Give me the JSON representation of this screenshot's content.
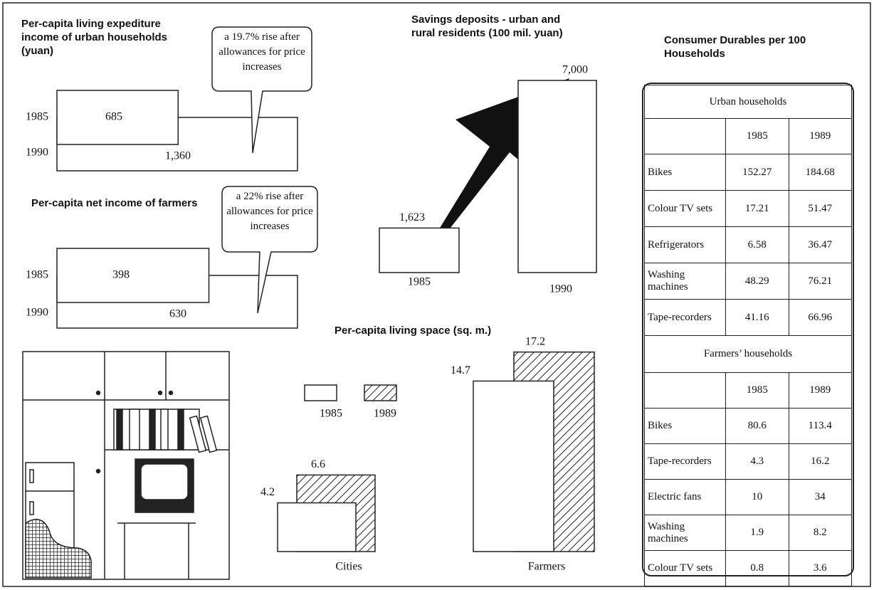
{
  "chart_data": [
    {
      "type": "bar",
      "orientation": "horizontal",
      "title": "Per-capita living expediture income of urban households (yuan)",
      "categories": [
        "1985",
        "1990"
      ],
      "values": [
        685,
        1360
      ],
      "value_labels": [
        "685",
        "1,360"
      ],
      "annotation": "a 19.7% rise after allowances for price increases",
      "color": "#ffffff"
    },
    {
      "type": "bar",
      "orientation": "horizontal",
      "title": "Per-capita net income of farmers",
      "categories": [
        "1985",
        "1990"
      ],
      "values": [
        398,
        630
      ],
      "value_labels": [
        "398",
        "630"
      ],
      "annotation": "a 22% rise after allowances for price increases",
      "color": "#ffffff"
    },
    {
      "type": "bar",
      "orientation": "vertical",
      "title": "Savings deposits - urban and rural residents (100 mil. yuan)",
      "categories": [
        "1985",
        "1990"
      ],
      "values": [
        1623,
        7000
      ],
      "value_labels": [
        "1,623",
        "7,000"
      ],
      "color": "#ffffff"
    },
    {
      "type": "grouped_bar",
      "title": "Per-capita living space (sq. m.)",
      "categories": [
        "Cities",
        "Farmers"
      ],
      "series": [
        {
          "name": "1985",
          "color": "#ffffff",
          "values": [
            4.2,
            14.7
          ]
        },
        {
          "name": "1989",
          "color": "hatch",
          "values": [
            6.6,
            17.2
          ]
        }
      ]
    }
  ],
  "table": {
    "title": "Consumer Durables per 100 Households",
    "sections": [
      {
        "heading": "Urban households",
        "columns": [
          "1985",
          "1989"
        ],
        "rows": [
          [
            "Bikes",
            152.27,
            184.68
          ],
          [
            "Colour TV sets",
            17.21,
            51.47
          ],
          [
            "Refrigerators",
            6.58,
            36.47
          ],
          [
            "Washing machines",
            48.29,
            76.21
          ],
          [
            "Tape-recorders",
            41.16,
            66.96
          ]
        ]
      },
      {
        "heading": "Farmers’ households",
        "columns": [
          "1985",
          "1989"
        ],
        "rows": [
          [
            "Bikes",
            80.6,
            113.4
          ],
          [
            "Tape-recorders",
            4.3,
            16.2
          ],
          [
            "Electric fans",
            10,
            34
          ],
          [
            "Washing machines",
            1.9,
            8.2
          ],
          [
            "Colour TV sets",
            0.8,
            3.6
          ]
        ]
      }
    ]
  }
}
